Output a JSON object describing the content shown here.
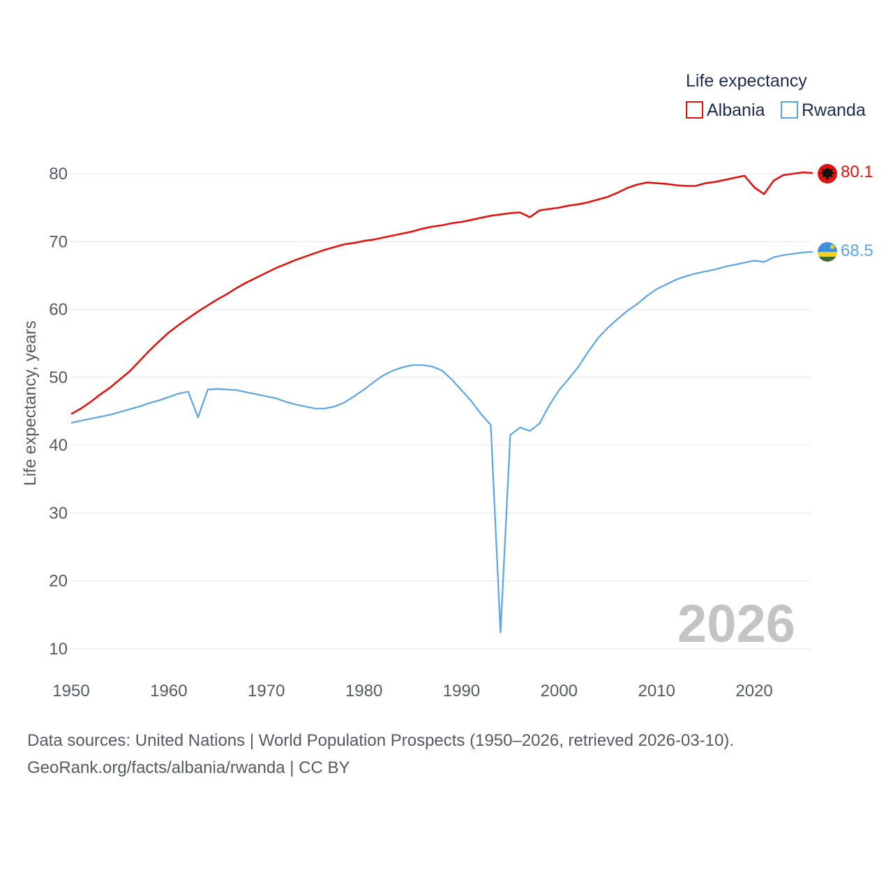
{
  "chart_data": {
    "type": "line",
    "legend_title": "Life expectancy",
    "ylabel": "Life expectancy, years",
    "xlabel": "",
    "xlim": [
      1950,
      2026
    ],
    "ylim": [
      7,
      86
    ],
    "yticks": [
      10,
      20,
      30,
      40,
      50,
      60,
      70,
      80
    ],
    "xticks": [
      1950,
      1960,
      1970,
      1980,
      1990,
      2000,
      2010,
      2020
    ],
    "year_stamp": "2026",
    "legend_position": "top-right",
    "x": [
      1950,
      1951,
      1952,
      1953,
      1954,
      1955,
      1956,
      1957,
      1958,
      1959,
      1960,
      1961,
      1962,
      1963,
      1964,
      1965,
      1966,
      1967,
      1968,
      1969,
      1970,
      1971,
      1972,
      1973,
      1974,
      1975,
      1976,
      1977,
      1978,
      1979,
      1980,
      1981,
      1982,
      1983,
      1984,
      1985,
      1986,
      1987,
      1988,
      1989,
      1990,
      1991,
      1992,
      1993,
      1994,
      1995,
      1996,
      1997,
      1998,
      1999,
      2000,
      2001,
      2002,
      2003,
      2004,
      2005,
      2006,
      2007,
      2008,
      2009,
      2010,
      2011,
      2012,
      2013,
      2014,
      2015,
      2016,
      2017,
      2018,
      2019,
      2020,
      2021,
      2022,
      2023,
      2024,
      2025,
      2026
    ],
    "series": [
      {
        "name": "Albania",
        "color": "#e3140f",
        "end_label": "80.1",
        "values": [
          44.6,
          45.4,
          46.4,
          47.5,
          48.5,
          49.7,
          50.9,
          52.4,
          53.9,
          55.3,
          56.6,
          57.7,
          58.7,
          59.7,
          60.6,
          61.5,
          62.3,
          63.2,
          64.0,
          64.7,
          65.4,
          66.1,
          66.7,
          67.3,
          67.8,
          68.3,
          68.8,
          69.2,
          69.6,
          69.8,
          70.1,
          70.3,
          70.6,
          70.9,
          71.2,
          71.5,
          71.9,
          72.2,
          72.4,
          72.7,
          72.9,
          73.2,
          73.5,
          73.8,
          74.0,
          74.2,
          74.3,
          73.6,
          74.6,
          74.8,
          75.0,
          75.3,
          75.5,
          75.8,
          76.2,
          76.6,
          77.2,
          77.9,
          78.4,
          78.7,
          78.6,
          78.5,
          78.3,
          78.2,
          78.2,
          78.6,
          78.8,
          79.1,
          79.4,
          79.7,
          78.0,
          77.0,
          79.0,
          79.8,
          80.0,
          80.2,
          80.1
        ]
      },
      {
        "name": "Rwanda",
        "color": "#5ba4e6",
        "end_label": "68.5",
        "values": [
          43.3,
          43.6,
          43.9,
          44.2,
          44.5,
          44.9,
          45.3,
          45.7,
          46.2,
          46.6,
          47.1,
          47.6,
          47.9,
          44.1,
          48.2,
          48.3,
          48.2,
          48.1,
          47.8,
          47.5,
          47.2,
          46.9,
          46.4,
          46.0,
          45.7,
          45.4,
          45.4,
          45.7,
          46.3,
          47.2,
          48.2,
          49.3,
          50.3,
          51.0,
          51.5,
          51.8,
          51.8,
          51.6,
          51.0,
          49.7,
          48.1,
          46.5,
          44.6,
          43.0,
          12.4,
          41.5,
          42.6,
          42.1,
          43.2,
          45.9,
          48.1,
          49.8,
          51.6,
          53.8,
          55.8,
          57.3,
          58.6,
          59.8,
          60.8,
          62.0,
          63.0,
          63.7,
          64.4,
          64.9,
          65.3,
          65.6,
          65.9,
          66.3,
          66.6,
          66.9,
          67.2,
          67.0,
          67.7,
          68.0,
          68.2,
          68.4,
          68.5
        ]
      }
    ]
  },
  "source": {
    "line1": "Data sources: United Nations | World Population Prospects (1950–2026, retrieved 2026-03-10).",
    "line2": "GeoRank.org/facts/albania/rwanda | CC BY"
  },
  "colors": {
    "grid": "#e6e6e6",
    "albania_flag": "#e3140f",
    "rwanda_flag_top": "#3d8fe0",
    "rwanda_flag_mid": "#f4d21a",
    "rwanda_flag_bottom": "#3c6b2e",
    "rwanda_sun": "#f4d21a"
  }
}
